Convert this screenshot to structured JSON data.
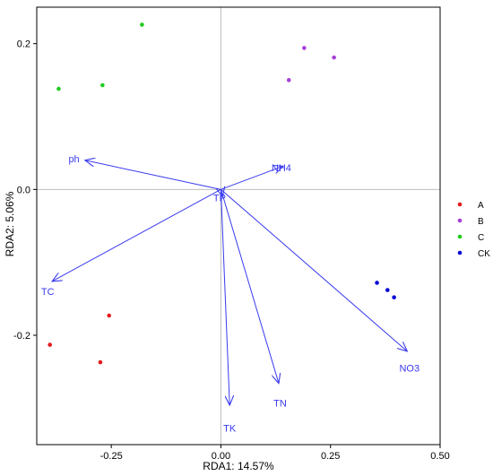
{
  "chart_data": {
    "type": "scatter",
    "subtype": "rda-biplot",
    "title": "",
    "xlabel": "RDA1: 14.57%",
    "ylabel": "RDA2: 5.06%",
    "xlim": [
      -0.42,
      0.5
    ],
    "ylim": [
      -0.35,
      0.25
    ],
    "x_ticks": [
      -0.25,
      0.0,
      0.25,
      0.5
    ],
    "x_tick_labels": [
      "-0.25",
      "0.00",
      "0.25",
      "0.50"
    ],
    "y_ticks": [
      -0.2,
      0.0,
      0.2
    ],
    "y_tick_labels": [
      "-0.2",
      "0.0",
      "0.2"
    ],
    "grid": false,
    "reference_lines": {
      "x": 0,
      "y": 0
    },
    "legend_position": "right",
    "series": [
      {
        "name": "A",
        "color": "#e41a1c",
        "points": [
          [
            -0.255,
            -0.173
          ],
          [
            -0.39,
            -0.213
          ],
          [
            -0.275,
            -0.237
          ]
        ]
      },
      {
        "name": "B",
        "color": "#a63fd6",
        "points": [
          [
            0.19,
            0.194
          ],
          [
            0.258,
            0.181
          ],
          [
            0.155,
            0.15
          ]
        ]
      },
      {
        "name": "C",
        "color": "#1fcc1f",
        "points": [
          [
            -0.18,
            0.226
          ],
          [
            -0.37,
            0.138
          ],
          [
            -0.27,
            0.143
          ]
        ]
      },
      {
        "name": "CK",
        "color": "#0a0ad6",
        "points": [
          [
            0.356,
            -0.128
          ],
          [
            0.38,
            -0.138
          ],
          [
            0.395,
            -0.148
          ]
        ]
      }
    ],
    "arrow_color": "#3a3af0",
    "arrows": [
      {
        "label": "ph",
        "x": -0.31,
        "y": 0.04,
        "label_x": -0.335,
        "label_y": 0.042
      },
      {
        "label": "NH4",
        "x": 0.142,
        "y": 0.032,
        "label_x": 0.138,
        "label_y": 0.03
      },
      {
        "label": "TP",
        "x": 0.004,
        "y": -0.01,
        "label_x": -0.003,
        "label_y": -0.011
      },
      {
        "label": "TC",
        "x": -0.385,
        "y": -0.126,
        "label_x": -0.395,
        "label_y": -0.14
      },
      {
        "label": "NO3",
        "x": 0.425,
        "y": -0.222,
        "label_x": 0.43,
        "label_y": -0.245
      },
      {
        "label": "TN",
        "x": 0.132,
        "y": -0.266,
        "label_x": 0.135,
        "label_y": -0.293
      },
      {
        "label": "TK",
        "x": 0.02,
        "y": -0.296,
        "label_x": 0.02,
        "label_y": -0.327
      }
    ]
  }
}
